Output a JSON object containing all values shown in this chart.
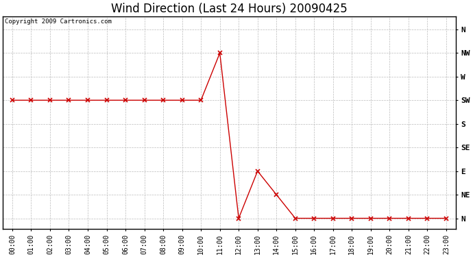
{
  "title": "Wind Direction (Last 24 Hours) 20090425",
  "copyright_text": "Copyright 2009 Cartronics.com",
  "x_labels": [
    "00:00",
    "01:00",
    "02:00",
    "03:00",
    "04:00",
    "05:00",
    "06:00",
    "07:00",
    "08:00",
    "09:00",
    "10:00",
    "11:00",
    "12:00",
    "13:00",
    "14:00",
    "15:00",
    "16:00",
    "17:00",
    "18:00",
    "19:00",
    "20:00",
    "21:00",
    "22:00",
    "23:00"
  ],
  "y_ticks": [
    360,
    315,
    270,
    225,
    180,
    135,
    90,
    45,
    0
  ],
  "y_tick_labels": [
    "N",
    "NW",
    "W",
    "SW",
    "S",
    "SE",
    "E",
    "NE",
    "N"
  ],
  "ylim": [
    -20,
    385
  ],
  "wind_data": [
    225,
    225,
    225,
    225,
    225,
    225,
    225,
    225,
    225,
    225,
    225,
    315,
    0,
    90,
    45,
    0,
    0,
    0,
    0,
    0,
    0,
    0,
    0,
    0
  ],
  "line_color": "#cc0000",
  "marker": "x",
  "marker_color": "#cc0000",
  "marker_size": 4,
  "marker_linewidth": 1.2,
  "bg_color": "#ffffff",
  "plot_bg_color": "#ffffff",
  "grid_color": "#bbbbbb",
  "grid_style": "--",
  "title_fontsize": 12,
  "axis_label_fontsize": 7,
  "ytick_fontsize": 8,
  "copyright_fontsize": 6.5
}
